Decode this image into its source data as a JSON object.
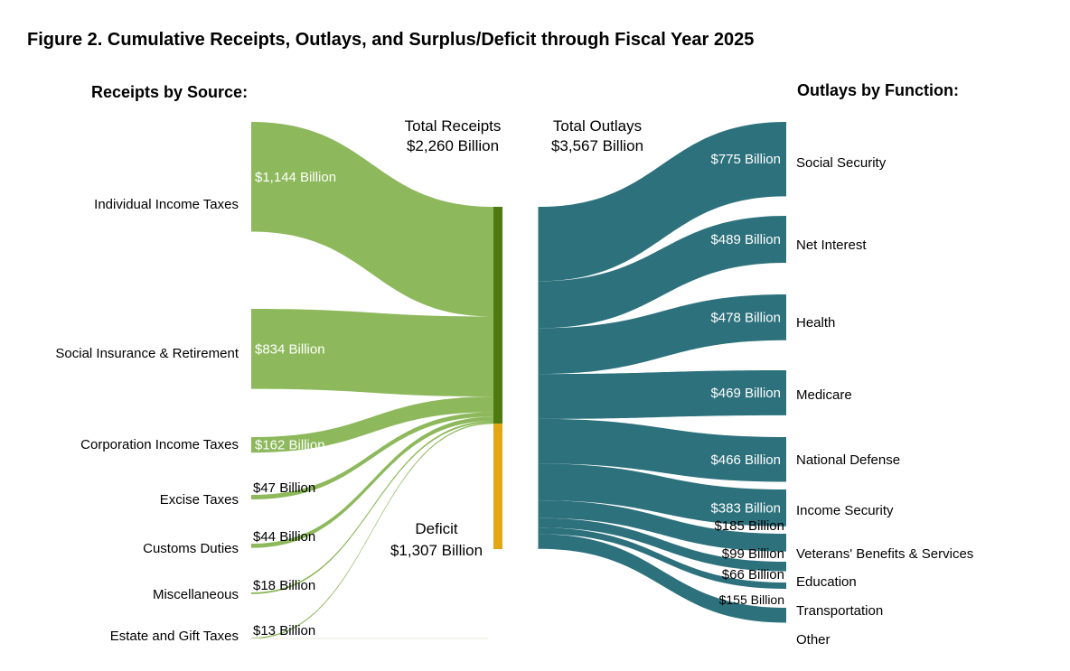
{
  "chart_data": {
    "type": "sankey",
    "title": "Figure 2. Cumulative Receipts, Outlays, and Surplus/Deficit through Fiscal Year 2025",
    "receipts_heading": "Receipts by Source:",
    "outlays_heading": "Outlays by Function:",
    "total_receipts": {
      "label": "Total Receipts",
      "value_label": "$2,260 Billion",
      "value": 2260
    },
    "total_outlays": {
      "label": "Total Outlays",
      "value_label": "$3,567 Billion",
      "value": 3567
    },
    "deficit": {
      "label": "Deficit",
      "value_label": "$1,307 Billion",
      "value": 1307
    },
    "receipts": [
      {
        "name": "Individual Income Taxes",
        "value": 1144,
        "value_label": "$1,144 Billion"
      },
      {
        "name": "Social Insurance & Retirement",
        "value": 834,
        "value_label": "$834 Billion"
      },
      {
        "name": "Corporation Income Taxes",
        "value": 162,
        "value_label": "$162 Billion"
      },
      {
        "name": "Excise Taxes",
        "value": 47,
        "value_label": "$47 Billion"
      },
      {
        "name": "Customs Duties",
        "value": 44,
        "value_label": "$44 Billion"
      },
      {
        "name": "Miscellaneous",
        "value": 18,
        "value_label": "$18 Billion"
      },
      {
        "name": "Estate and Gift Taxes",
        "value": 13,
        "value_label": "$13 Billion"
      }
    ],
    "outlays": [
      {
        "name": "Social Security",
        "value": 775,
        "value_label": "$775 Billion"
      },
      {
        "name": "Net Interest",
        "value": 489,
        "value_label": "$489 Billion"
      },
      {
        "name": "Health",
        "value": 478,
        "value_label": "$478 Billion"
      },
      {
        "name": "Medicare",
        "value": 469,
        "value_label": "$469 Billion"
      },
      {
        "name": "National Defense",
        "value": 466,
        "value_label": "$466 Billion"
      },
      {
        "name": "Income Security",
        "value": 383,
        "value_label": "$383 Billion"
      },
      {
        "name": "Veterans' Benefits & Services",
        "value": 185,
        "value_label": "$185 Billion"
      },
      {
        "name": "Education",
        "value": 99,
        "value_label": "$99 Billion"
      },
      {
        "name": "Transportation",
        "value": 66,
        "value_label": "$66 Billion"
      },
      {
        "name": "Other",
        "value": 155,
        "value_label": "$155 Billion"
      }
    ],
    "colors": {
      "receipts": "#8db95c",
      "receipts_bar": "#4e7a10",
      "deficit_bar": "#e2a712",
      "outlays": "#2d717d"
    }
  }
}
